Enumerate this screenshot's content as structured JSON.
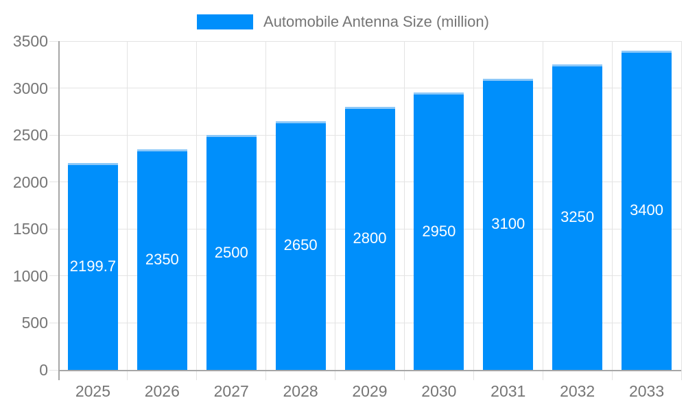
{
  "chart_data": {
    "type": "bar",
    "title": "Automobile Antenna Size (million)",
    "categories": [
      "2025",
      "2026",
      "2027",
      "2028",
      "2029",
      "2030",
      "2031",
      "2032",
      "2033"
    ],
    "series": [
      {
        "name": "Automobile Antenna Size (million)",
        "values": [
          2199.7,
          2350,
          2500,
          2650,
          2800,
          2950,
          3100,
          3250,
          3400
        ]
      }
    ],
    "value_labels": [
      "2199.7",
      "2350",
      "2500",
      "2650",
      "2800",
      "2950",
      "3100",
      "3250",
      "3400"
    ],
    "xlabel": "",
    "ylabel": "",
    "ylim": [
      0,
      3500
    ],
    "yticks": [
      0,
      500,
      1000,
      1500,
      2000,
      2500,
      3000,
      3500
    ],
    "grid": true,
    "legend_position": "top",
    "colors": {
      "bar": "#008FFB",
      "bar_top_edge": "#8CC8F8",
      "grid": "#E3E3E3",
      "axis": "#A6A6A6",
      "tick_label": "#757575",
      "legend_text": "#757575",
      "value_label": "#FFFFFF",
      "background": "#FFFFFF"
    }
  }
}
